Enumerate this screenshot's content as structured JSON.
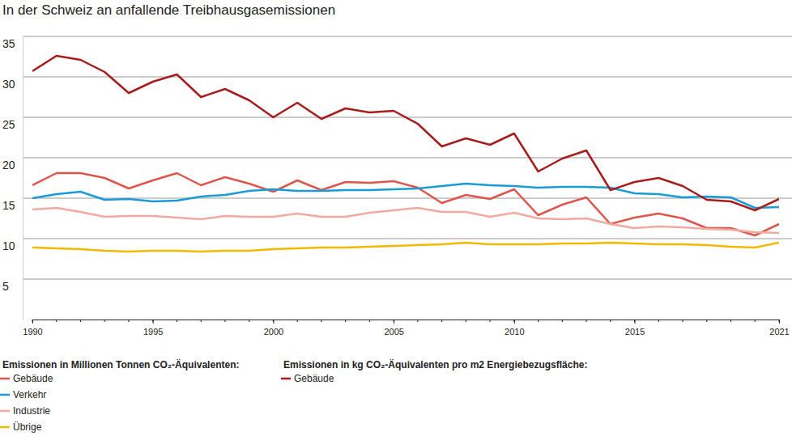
{
  "chart_data": {
    "type": "line",
    "title": "In der Schweiz an anfallende Treibhausgasemissionen",
    "annotations": [
      "Emissionen in Millionen Tonnen CO₂-Äquivalenten:",
      "Emissionen in kg CO₂-Äquivalenten pro m2 Energiebezugsfläche:"
    ],
    "x": [
      1990,
      1991,
      1992,
      1993,
      1994,
      1995,
      1996,
      1997,
      1998,
      1999,
      2000,
      2001,
      2002,
      2003,
      2004,
      2005,
      2006,
      2007,
      2008,
      2009,
      2010,
      2011,
      2012,
      2013,
      2014,
      2015,
      2016,
      2017,
      2018,
      2019,
      2020,
      2021
    ],
    "xlim": [
      1990,
      2021
    ],
    "xticks": [
      1990,
      1995,
      2000,
      2005,
      2010,
      2015,
      2021
    ],
    "ylim": [
      0,
      35
    ],
    "yticks": [
      5,
      10,
      15,
      20,
      25,
      30,
      35
    ],
    "grid": true,
    "legend": "bottom",
    "series": [
      {
        "name": "Gebäude",
        "color": "#e0554b",
        "values": [
          16.6,
          18.1,
          18.1,
          17.5,
          16.2,
          17.2,
          18.1,
          16.6,
          17.6,
          16.8,
          15.8,
          17.2,
          16.0,
          17.0,
          16.9,
          17.1,
          16.3,
          14.4,
          15.4,
          14.9,
          16.1,
          12.9,
          14.2,
          15.1,
          11.8,
          12.6,
          13.1,
          12.5,
          11.3,
          11.3,
          10.4,
          11.8
        ]
      },
      {
        "name": "Verkehr",
        "color": "#1a9bd7",
        "values": [
          15.0,
          15.5,
          15.8,
          14.8,
          14.9,
          14.6,
          14.7,
          15.2,
          15.4,
          15.9,
          16.1,
          15.9,
          15.9,
          16.0,
          16.0,
          16.1,
          16.2,
          16.5,
          16.8,
          16.6,
          16.5,
          16.3,
          16.4,
          16.4,
          16.3,
          15.6,
          15.5,
          15.1,
          15.2,
          15.1,
          13.8,
          13.9
        ]
      },
      {
        "name": "Industrie",
        "color": "#f2aaa0",
        "values": [
          13.6,
          13.8,
          13.3,
          12.7,
          12.8,
          12.8,
          12.6,
          12.4,
          12.8,
          12.7,
          12.7,
          13.1,
          12.7,
          12.7,
          13.2,
          13.5,
          13.8,
          13.3,
          13.3,
          12.7,
          13.2,
          12.5,
          12.4,
          12.5,
          11.8,
          11.3,
          11.5,
          11.4,
          11.2,
          11.1,
          10.8,
          10.7
        ]
      },
      {
        "name": "Übrige",
        "color": "#f5b800",
        "values": [
          8.9,
          8.8,
          8.7,
          8.5,
          8.4,
          8.5,
          8.5,
          8.4,
          8.5,
          8.5,
          8.7,
          8.8,
          8.9,
          8.9,
          9.0,
          9.1,
          9.2,
          9.3,
          9.5,
          9.3,
          9.3,
          9.3,
          9.4,
          9.4,
          9.5,
          9.4,
          9.3,
          9.3,
          9.2,
          9.0,
          8.9,
          9.5
        ]
      },
      {
        "name": "Gebäude",
        "color": "#a81c1c",
        "values": [
          30.7,
          32.6,
          32.1,
          30.6,
          28.0,
          29.4,
          30.3,
          27.5,
          28.5,
          27.1,
          25.0,
          26.8,
          24.8,
          26.1,
          25.6,
          25.8,
          24.2,
          21.4,
          22.4,
          21.6,
          23.0,
          18.3,
          19.9,
          20.9,
          16.0,
          17.0,
          17.5,
          16.5,
          14.8,
          14.6,
          13.5,
          14.9
        ]
      }
    ]
  }
}
